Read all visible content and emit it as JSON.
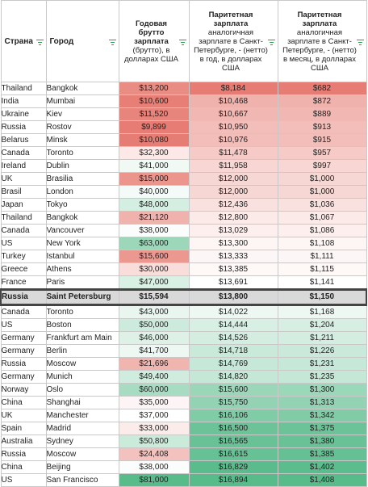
{
  "headers": {
    "country": "Страна",
    "city": "Город",
    "gross_bold": "Годовая брутто зарплата",
    "gross_rest": "(брутто), в долларах США",
    "year_bold": "Паритетная зарплата",
    "year_rest": "аналогичная зарплате в Санкт-Петербурге, - (нетто) в год, в долларах США",
    "month_bold": "Паритетная зарплата",
    "month_rest": "аналогичная зарплате в Санкт-Петербурге, - (нетто) в месяц, в долларах США"
  },
  "rows": [
    {
      "country": "Thailand",
      "city": "Bangkok",
      "gross": "$13,200",
      "year": "$8,184",
      "month": "$682"
    },
    {
      "country": "India",
      "city": "Mumbai",
      "gross": "$10,600",
      "year": "$10,468",
      "month": "$872"
    },
    {
      "country": "Ukraine",
      "city": "Kiev",
      "gross": "$11,520",
      "year": "$10,667",
      "month": "$889"
    },
    {
      "country": "Russia",
      "city": "Rostov",
      "gross": "$9,899",
      "year": "$10,950",
      "month": "$913"
    },
    {
      "country": "Belarus",
      "city": "Minsk",
      "gross": "$10,080",
      "year": "$10,976",
      "month": "$915"
    },
    {
      "country": "Canada",
      "city": "Toronto",
      "gross": "$32,300",
      "year": "$11,478",
      "month": "$957"
    },
    {
      "country": "Ireland",
      "city": "Dublin",
      "gross": "$41,000",
      "year": "$11,958",
      "month": "$997"
    },
    {
      "country": "UK",
      "city": "Brasilia",
      "gross": "$15,000",
      "year": "$12,000",
      "month": "$1,000"
    },
    {
      "country": "Brasil",
      "city": "London",
      "gross": "$40,000",
      "year": "$12,000",
      "month": "$1,000"
    },
    {
      "country": "Japan",
      "city": "Tokyo",
      "gross": "$48,000",
      "year": "$12,436",
      "month": "$1,036"
    },
    {
      "country": "Thailand",
      "city": "Bangkok",
      "gross": "$21,120",
      "year": "$12,800",
      "month": "$1,067"
    },
    {
      "country": "Canada",
      "city": "Vancouver",
      "gross": "$38,000",
      "year": "$13,029",
      "month": "$1,086"
    },
    {
      "country": "US",
      "city": "New York",
      "gross": "$63,000",
      "year": "$13,300",
      "month": "$1,108"
    },
    {
      "country": "Turkey",
      "city": "Istanbul",
      "gross": "$15,600",
      "year": "$13,333",
      "month": "$1,111"
    },
    {
      "country": "Greece",
      "city": "Athens",
      "gross": "$30,000",
      "year": "$13,385",
      "month": "$1,115"
    },
    {
      "country": "France",
      "city": "Paris",
      "gross": "$47,000",
      "year": "$13,691",
      "month": "$1,141"
    },
    {
      "country": "Russia",
      "city": "Saint Petersburg",
      "gross": "$15,594",
      "year": "$13,800",
      "month": "$1,150",
      "highlight": true
    },
    {
      "country": "Canada",
      "city": "Toronto",
      "gross": "$43,000",
      "year": "$14,022",
      "month": "$1,168"
    },
    {
      "country": "US",
      "city": "Boston",
      "gross": "$50,000",
      "year": "$14,444",
      "month": "$1,204"
    },
    {
      "country": "Germany",
      "city": "Frankfurt am Main",
      "gross": "$46,000",
      "year": "$14,526",
      "month": "$1,211"
    },
    {
      "country": "Germany",
      "city": "Berlin",
      "gross": "$41,700",
      "year": "$14,718",
      "month": "$1,226"
    },
    {
      "country": "Russia",
      "city": "Moscow",
      "gross": "$21,696",
      "year": "$14,769",
      "month": "$1,231"
    },
    {
      "country": "Germany",
      "city": "Munich",
      "gross": "$49,400",
      "year": "$14,820",
      "month": "$1,235"
    },
    {
      "country": "Norway",
      "city": "Oslo",
      "gross": "$60,000",
      "year": "$15,600",
      "month": "$1,300"
    },
    {
      "country": "China",
      "city": "Shanghai",
      "gross": "$35,000",
      "year": "$15,750",
      "month": "$1,313"
    },
    {
      "country": "UK",
      "city": "Manchester",
      "gross": "$37,000",
      "year": "$16,106",
      "month": "$1,342"
    },
    {
      "country": "Spain",
      "city": "Madrid",
      "gross": "$33,000",
      "year": "$16,500",
      "month": "$1,375"
    },
    {
      "country": "Australia",
      "city": "Sydney",
      "gross": "$50,800",
      "year": "$16,565",
      "month": "$1,380"
    },
    {
      "country": "Russia",
      "city": "Moscow",
      "gross": "$24,408",
      "year": "$16,615",
      "month": "$1,385"
    },
    {
      "country": "China",
      "city": "Beijing",
      "gross": "$38,000",
      "year": "$16,829",
      "month": "$1,402"
    },
    {
      "country": "US",
      "city": "San Francisco",
      "gross": "$81,000",
      "year": "$16,894",
      "month": "$1,408"
    }
  ],
  "colors": {
    "low": "#e67c73",
    "mid": "#ffffff",
    "high": "#57bb8a",
    "highlight_row": "#d9d9d9",
    "filter_icon": "#2e9e4f"
  }
}
